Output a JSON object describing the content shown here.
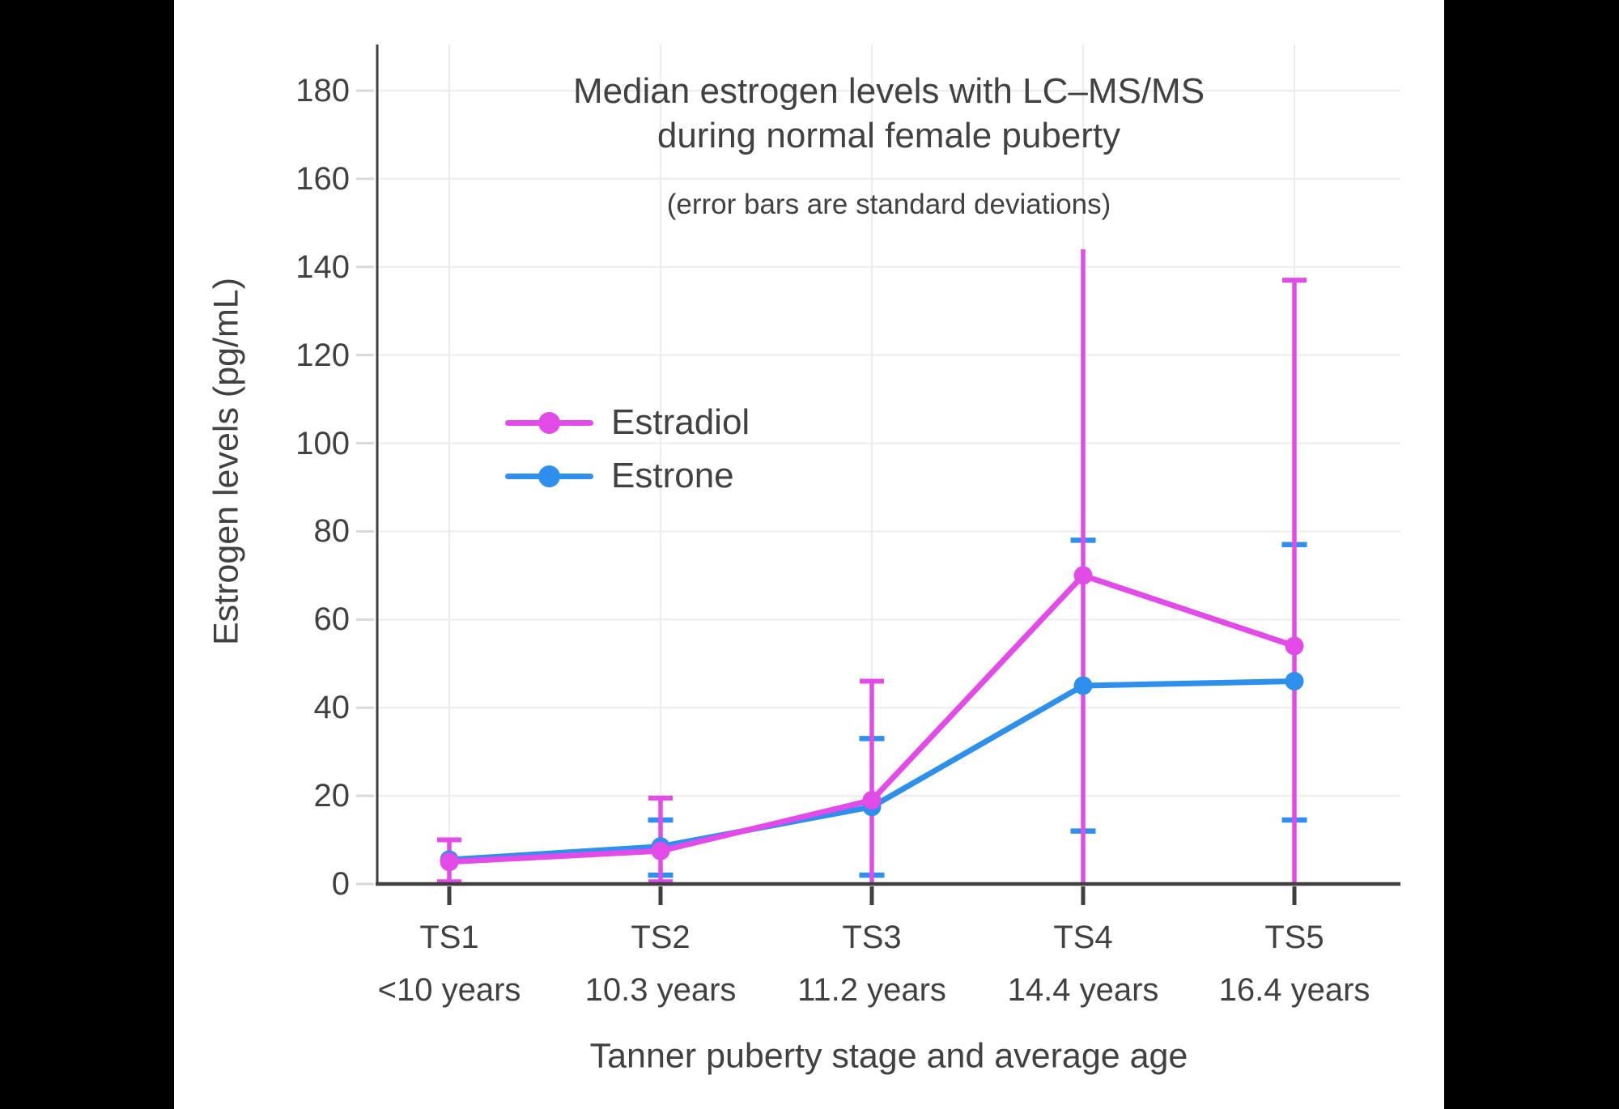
{
  "colors": {
    "background": "#000000",
    "panel": "#ffffff",
    "text": "#414141",
    "grid": "#ececec",
    "tick": "#d9d9d9",
    "axis": "#3f3f3f"
  },
  "chart_data": {
    "type": "line",
    "title": "Median estrogen levels with LC–MS/MS during normal female puberty",
    "title_lines": [
      "Median estrogen levels with LC–MS/MS",
      "during normal female puberty"
    ],
    "subtitle": "(error bars are standard deviations)",
    "xlabel": "Tanner puberty stage and average age",
    "ylabel": "Estrogen levels (pg/mL)",
    "ylim": [
      0,
      190
    ],
    "yticks": [
      0,
      20,
      40,
      60,
      80,
      100,
      120,
      140,
      160,
      180
    ],
    "categories": [
      "TS1",
      "TS2",
      "TS3",
      "TS4",
      "TS5"
    ],
    "age_labels": [
      "<10 years",
      "10.3 years",
      "11.2 years",
      "14.4 years",
      "16.4 years"
    ],
    "grid": true,
    "legend_position": "inside-upper-left",
    "series": [
      {
        "name": "Estradiol",
        "color": "#E34BE8",
        "values": [
          5,
          7.5,
          19,
          70,
          54
        ],
        "error_bars": [
          {
            "lo": 0.5,
            "hi": 10,
            "cap_top": true,
            "cap_bottom": true
          },
          {
            "lo": 0.5,
            "hi": 19.5,
            "cap_top": true,
            "cap_bottom": true
          },
          {
            "lo": 0,
            "hi": 46,
            "cap_top": true,
            "cap_bottom": false
          },
          {
            "lo": 0,
            "hi": 144,
            "cap_top": false,
            "cap_bottom": false
          },
          {
            "lo": 0,
            "hi": 137,
            "cap_top": true,
            "cap_bottom": false
          }
        ]
      },
      {
        "name": "Estrone",
        "color": "#2E90EC",
        "values": [
          5.5,
          8.5,
          17.5,
          45,
          46
        ],
        "caps_only": true,
        "error_bars": [
          {
            "lo": null,
            "hi": null
          },
          {
            "lo": 2,
            "hi": 14.5
          },
          {
            "lo": 2,
            "hi": 33
          },
          {
            "lo": 12,
            "hi": 78
          },
          {
            "lo": 14.5,
            "hi": 77
          }
        ]
      }
    ]
  }
}
